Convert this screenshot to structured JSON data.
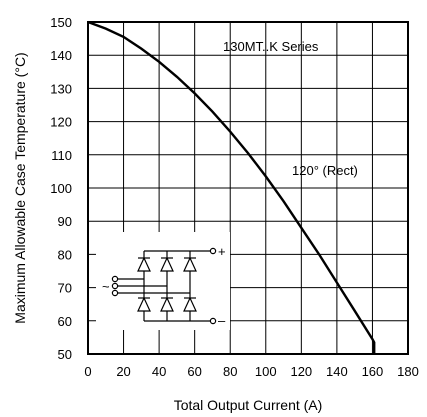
{
  "chart_data": {
    "type": "line",
    "xlabel": "Total Output Current (A)",
    "ylabel": "Maximum Allowable Case Temperature (°C)",
    "xlim": [
      0,
      180
    ],
    "ylim": [
      50,
      150
    ],
    "x_ticks": [
      0,
      20,
      40,
      60,
      80,
      100,
      120,
      140,
      160,
      180
    ],
    "y_ticks": [
      50,
      60,
      70,
      80,
      90,
      100,
      110,
      120,
      130,
      140,
      150
    ],
    "grid": true,
    "annotations": [
      "130MT..K Series",
      "120° (Rect)"
    ],
    "series": [
      {
        "x": [
          0,
          10,
          20,
          30,
          40,
          50,
          60,
          70,
          80,
          90,
          100,
          110,
          120,
          130,
          140,
          150,
          160,
          161,
          161
        ],
        "y": [
          150,
          148,
          145.5,
          142,
          138,
          133.5,
          128.5,
          123,
          117,
          110.5,
          103.5,
          96,
          88,
          80,
          71.5,
          63,
          54.5,
          53.5,
          50
        ]
      }
    ],
    "inset_symbols": [
      "+",
      "~",
      "–"
    ]
  }
}
